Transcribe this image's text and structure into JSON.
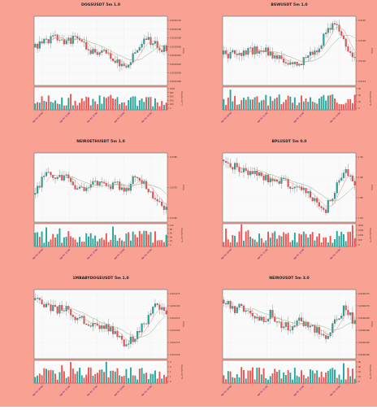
{
  "page": {
    "background": "#f9a293"
  },
  "colors": {
    "up": "#26a69a",
    "down": "#ef5350",
    "ma_fast": "#f08080",
    "ma_slow": "#7db57d",
    "panel": "#fafafa",
    "grid": "#dddddd",
    "label": "#4b0082"
  },
  "chart_data": [
    {
      "type": "candlestick",
      "title": "DOGSUSDT 5m 1.0",
      "ylabel": "Price",
      "vlabel": "Volume 10^7",
      "yticks": [
        "0.0002120",
        "0.0002100",
        "0.0002080",
        "0.0002060",
        "0.0002040",
        "0.0002020",
        "0.0002000",
        "0.0001980"
      ],
      "vticks": [
        "1000",
        "800",
        "600",
        "400",
        "200",
        "0"
      ],
      "xticks": [
        "Apr 01 10:00",
        "Apr 01 11:00",
        "Apr 01 12:00",
        "Apr 01 13:00",
        "Apr 01 14:00"
      ],
      "seed": 11,
      "trend": [
        0.55,
        0.65,
        0.7,
        0.6,
        0.7,
        0.55,
        0.45,
        0.5,
        0.35,
        0.2,
        0.5,
        0.65,
        0.6,
        0.5
      ]
    },
    {
      "type": "candlestick",
      "title": "BSWUSDT 5m 1.0",
      "ylabel": "Price",
      "vlabel": "Volume 10^6",
      "yticks": [
        "0.0120",
        "0.0118",
        "0.0116",
        "0.0114"
      ],
      "vticks": [
        "60",
        "40",
        "20",
        "0"
      ],
      "xticks": [
        "Apr 01 10:00",
        "Apr 01 11:00",
        "Apr 01 12:00",
        "Apr 01 13:00"
      ],
      "seed": 23,
      "trend": [
        0.45,
        0.45,
        0.48,
        0.5,
        0.52,
        0.45,
        0.38,
        0.32,
        0.3,
        0.45,
        0.5,
        0.8,
        0.9,
        0.55,
        0.4
      ]
    },
    {
      "type": "candlestick",
      "title": "NEIROETHUSDT 5m 1.0",
      "ylabel": "Price",
      "vlabel": "Volume 10^5",
      "yticks": [
        "0.0380",
        "0.0370",
        "0.0360"
      ],
      "vticks": [
        "100",
        "80",
        "60",
        "40",
        "20",
        "0"
      ],
      "xticks": [
        "Apr 01 10:00",
        "Apr 01 11:00",
        "Apr 01 12:00",
        "Apr 01 13:00",
        "Apr 01 14:00"
      ],
      "seed": 37,
      "trend": [
        0.4,
        0.7,
        0.6,
        0.65,
        0.5,
        0.45,
        0.6,
        0.5,
        0.55,
        0.45,
        0.7,
        0.5,
        0.35,
        0.2
      ]
    },
    {
      "type": "candlestick",
      "title": "BPLUSDT 5m 0.0",
      "ylabel": "Price",
      "vlabel": "Volume 10^5",
      "yticks": [
        "1.90",
        "1.88",
        "1.86",
        "1.84"
      ],
      "vticks": [
        "2000",
        "1500",
        "1000",
        "500",
        "0"
      ],
      "xticks": [
        "Apr 01 10:00",
        "Apr 01 11:00",
        "Apr 01 12:00",
        "Apr 01 13:00"
      ],
      "seed": 51,
      "trend": [
        0.9,
        0.8,
        0.75,
        0.7,
        0.65,
        0.55,
        0.6,
        0.5,
        0.45,
        0.3,
        0.15,
        0.45,
        0.75,
        0.5
      ]
    },
    {
      "type": "candlestick",
      "title": "1MBABYDOGEUSDT 5m 1.0",
      "ylabel": "Price",
      "vlabel": "Volume 10^8",
      "yticks": [
        "0.001475",
        "0.001450",
        "0.001425",
        "0.001400",
        "0.001375",
        "0.001350"
      ],
      "vticks": [
        "4",
        "3",
        "2",
        "1",
        "0"
      ],
      "xticks": [
        "Apr 01 10:00",
        "Apr 01 11:00",
        "Apr 01 12:00",
        "Apr 01 13:00",
        "Apr 01 14:00"
      ],
      "seed": 67,
      "trend": [
        0.85,
        0.8,
        0.7,
        0.75,
        0.6,
        0.55,
        0.5,
        0.45,
        0.4,
        0.2,
        0.35,
        0.55,
        0.8,
        0.6
      ]
    },
    {
      "type": "candlestick",
      "title": "NEIROUSDT 5m 3.0",
      "ylabel": "Price",
      "vlabel": "Volume 10^6",
      "yticks": [
        "0.0000275",
        "0.0000270",
        "0.0000265",
        "0.0000260",
        "0.0000255",
        "0.0000250"
      ],
      "vticks": [
        "80",
        "60",
        "40",
        "20",
        "0"
      ],
      "xticks": [
        "Apr 01 10:00",
        "Apr 01 11:00",
        "Apr 01 12:00",
        "Apr 01 13:00"
      ],
      "seed": 83,
      "trend": [
        0.85,
        0.7,
        0.75,
        0.6,
        0.55,
        0.65,
        0.5,
        0.45,
        0.55,
        0.5,
        0.4,
        0.3,
        0.55,
        0.75,
        0.5
      ]
    }
  ]
}
